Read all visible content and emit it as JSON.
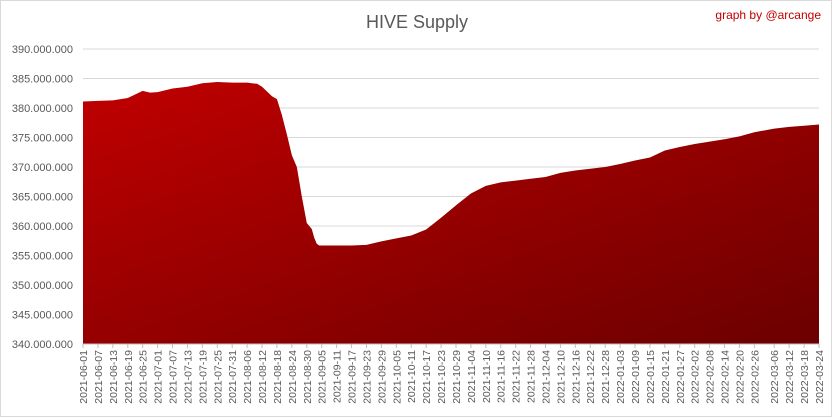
{
  "chart_data": {
    "type": "area",
    "title": "HIVE Supply",
    "credit": "graph by @arcange",
    "xlabel": "",
    "ylabel": "",
    "ylim": [
      340000000,
      390000000
    ],
    "yticks": [
      {
        "value": 340000000,
        "label": "340.000.000"
      },
      {
        "value": 345000000,
        "label": "345.000.000"
      },
      {
        "value": 350000000,
        "label": "350.000.000"
      },
      {
        "value": 355000000,
        "label": "355.000.000"
      },
      {
        "value": 360000000,
        "label": "360.000.000"
      },
      {
        "value": 365000000,
        "label": "365.000.000"
      },
      {
        "value": 370000000,
        "label": "370.000.000"
      },
      {
        "value": 375000000,
        "label": "375.000.000"
      },
      {
        "value": 380000000,
        "label": "380.000.000"
      },
      {
        "value": 385000000,
        "label": "385.000.000"
      },
      {
        "value": 390000000,
        "label": "390.000.000"
      }
    ],
    "xlim": [
      "2021-06-01",
      "2022-03-24"
    ],
    "xticks": [
      "2021-06-01",
      "2021-06-07",
      "2021-06-13",
      "2021-06-19",
      "2021-06-25",
      "2021-07-01",
      "2021-07-07",
      "2021-07-13",
      "2021-07-19",
      "2021-07-25",
      "2021-07-31",
      "2021-08-06",
      "2021-08-12",
      "2021-08-18",
      "2021-08-24",
      "2021-08-30",
      "2021-09-05",
      "2021-09-11",
      "2021-09-17",
      "2021-09-23",
      "2021-09-29",
      "2021-10-05",
      "2021-10-11",
      "2021-10-17",
      "2021-10-23",
      "2021-10-29",
      "2021-11-04",
      "2021-11-10",
      "2021-11-16",
      "2021-11-22",
      "2021-11-28",
      "2021-12-04",
      "2021-12-10",
      "2021-12-16",
      "2021-12-22",
      "2021-12-28",
      "2022-01-03",
      "2022-01-09",
      "2022-01-15",
      "2022-01-21",
      "2022-01-27",
      "2022-02-02",
      "2022-02-08",
      "2022-02-14",
      "2022-02-20",
      "2022-02-26",
      "2022-03-06",
      "2022-03-12",
      "2022-03-18",
      "2022-03-24"
    ],
    "grid": true,
    "fill_colors": {
      "top_left": "#c00000",
      "bottom_right": "#6b0000"
    },
    "series": [
      {
        "x": [
          "2021-06-01",
          "2021-06-07",
          "2021-06-13",
          "2021-06-19",
          "2021-06-25",
          "2021-06-28",
          "2021-07-01",
          "2021-07-07",
          "2021-07-13",
          "2021-07-19",
          "2021-07-25",
          "2021-07-31",
          "2021-08-06",
          "2021-08-10",
          "2021-08-12",
          "2021-08-16",
          "2021-08-18",
          "2021-08-20",
          "2021-08-22",
          "2021-08-24",
          "2021-08-26",
          "2021-08-28",
          "2021-08-30",
          "2021-09-01",
          "2021-09-02",
          "2021-09-03",
          "2021-09-04",
          "2021-09-05",
          "2021-09-06",
          "2021-09-08",
          "2021-09-11",
          "2021-09-17",
          "2021-09-23",
          "2021-09-29",
          "2021-10-05",
          "2021-10-11",
          "2021-10-17",
          "2021-10-23",
          "2021-10-29",
          "2021-11-04",
          "2021-11-10",
          "2021-11-16",
          "2021-11-22",
          "2021-11-28",
          "2021-12-04",
          "2021-12-10",
          "2021-12-16",
          "2021-12-22",
          "2021-12-28",
          "2022-01-03",
          "2022-01-09",
          "2022-01-15",
          "2022-01-21",
          "2022-01-27",
          "2022-02-02",
          "2022-02-08",
          "2022-02-14",
          "2022-02-20",
          "2022-02-26",
          "2022-03-06",
          "2022-03-12",
          "2022-03-18",
          "2022-03-24"
        ],
        "values": [
          381100000,
          381200000,
          381300000,
          381700000,
          382900000,
          382600000,
          382700000,
          383300000,
          383600000,
          384200000,
          384400000,
          384300000,
          384300000,
          384100000,
          383600000,
          382000000,
          381500000,
          378800000,
          375500000,
          372000000,
          370000000,
          365000000,
          360500000,
          359500000,
          358000000,
          357000000,
          356700000,
          356700000,
          356700000,
          356700000,
          356700000,
          356700000,
          356800000,
          357400000,
          357900000,
          358400000,
          359400000,
          361400000,
          363500000,
          365500000,
          366800000,
          367400000,
          367700000,
          368000000,
          368300000,
          369000000,
          369400000,
          369700000,
          370000000,
          370500000,
          371100000,
          371600000,
          372800000,
          373400000,
          373900000,
          374300000,
          374700000,
          375200000,
          375900000,
          376500000,
          376800000,
          377000000,
          377200000
        ]
      }
    ]
  }
}
